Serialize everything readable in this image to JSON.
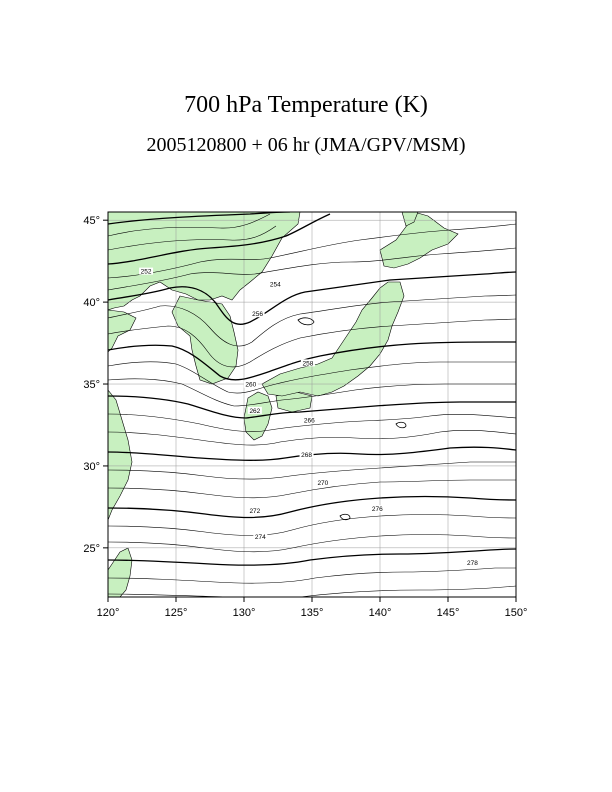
{
  "header": {
    "title": "700 hPa Temperature (K)",
    "subtitle": "2005120800 + 06 hr (JMA/GPV/MSM)"
  },
  "map": {
    "lon_range": [
      120,
      150
    ],
    "lat_range": [
      22,
      45.5
    ],
    "lon_ticks": [
      {
        "value": 120,
        "label": "120°"
      },
      {
        "value": 125,
        "label": "125°"
      },
      {
        "value": 130,
        "label": "130°"
      },
      {
        "value": 135,
        "label": "135°"
      },
      {
        "value": 140,
        "label": "140°"
      },
      {
        "value": 145,
        "label": "145°"
      },
      {
        "value": 150,
        "label": "150°"
      }
    ],
    "lat_ticks": [
      {
        "value": 25,
        "label": "25°"
      },
      {
        "value": 30,
        "label": "30°"
      },
      {
        "value": 35,
        "label": "35°"
      },
      {
        "value": 40,
        "label": "40°"
      },
      {
        "value": 45,
        "label": "45°"
      }
    ],
    "grid": true,
    "land_color": "#c8f0c0",
    "contour_labels": [
      {
        "text": "252",
        "lon": 122.8,
        "lat": 41.8
      },
      {
        "text": "254",
        "lon": 132.3,
        "lat": 41.0
      },
      {
        "text": "256",
        "lon": 131.0,
        "lat": 39.2
      },
      {
        "text": "258",
        "lon": 134.7,
        "lat": 36.2
      },
      {
        "text": "260",
        "lon": 130.5,
        "lat": 34.9
      },
      {
        "text": "262",
        "lon": 130.8,
        "lat": 33.3
      },
      {
        "text": "266",
        "lon": 134.8,
        "lat": 32.7
      },
      {
        "text": "268",
        "lon": 134.6,
        "lat": 30.6
      },
      {
        "text": "270",
        "lon": 135.8,
        "lat": 28.9
      },
      {
        "text": "272",
        "lon": 130.8,
        "lat": 27.2
      },
      {
        "text": "274",
        "lon": 131.2,
        "lat": 25.6
      },
      {
        "text": "276",
        "lon": 139.8,
        "lat": 27.3
      },
      {
        "text": "278",
        "lon": 146.8,
        "lat": 24.0
      }
    ]
  }
}
